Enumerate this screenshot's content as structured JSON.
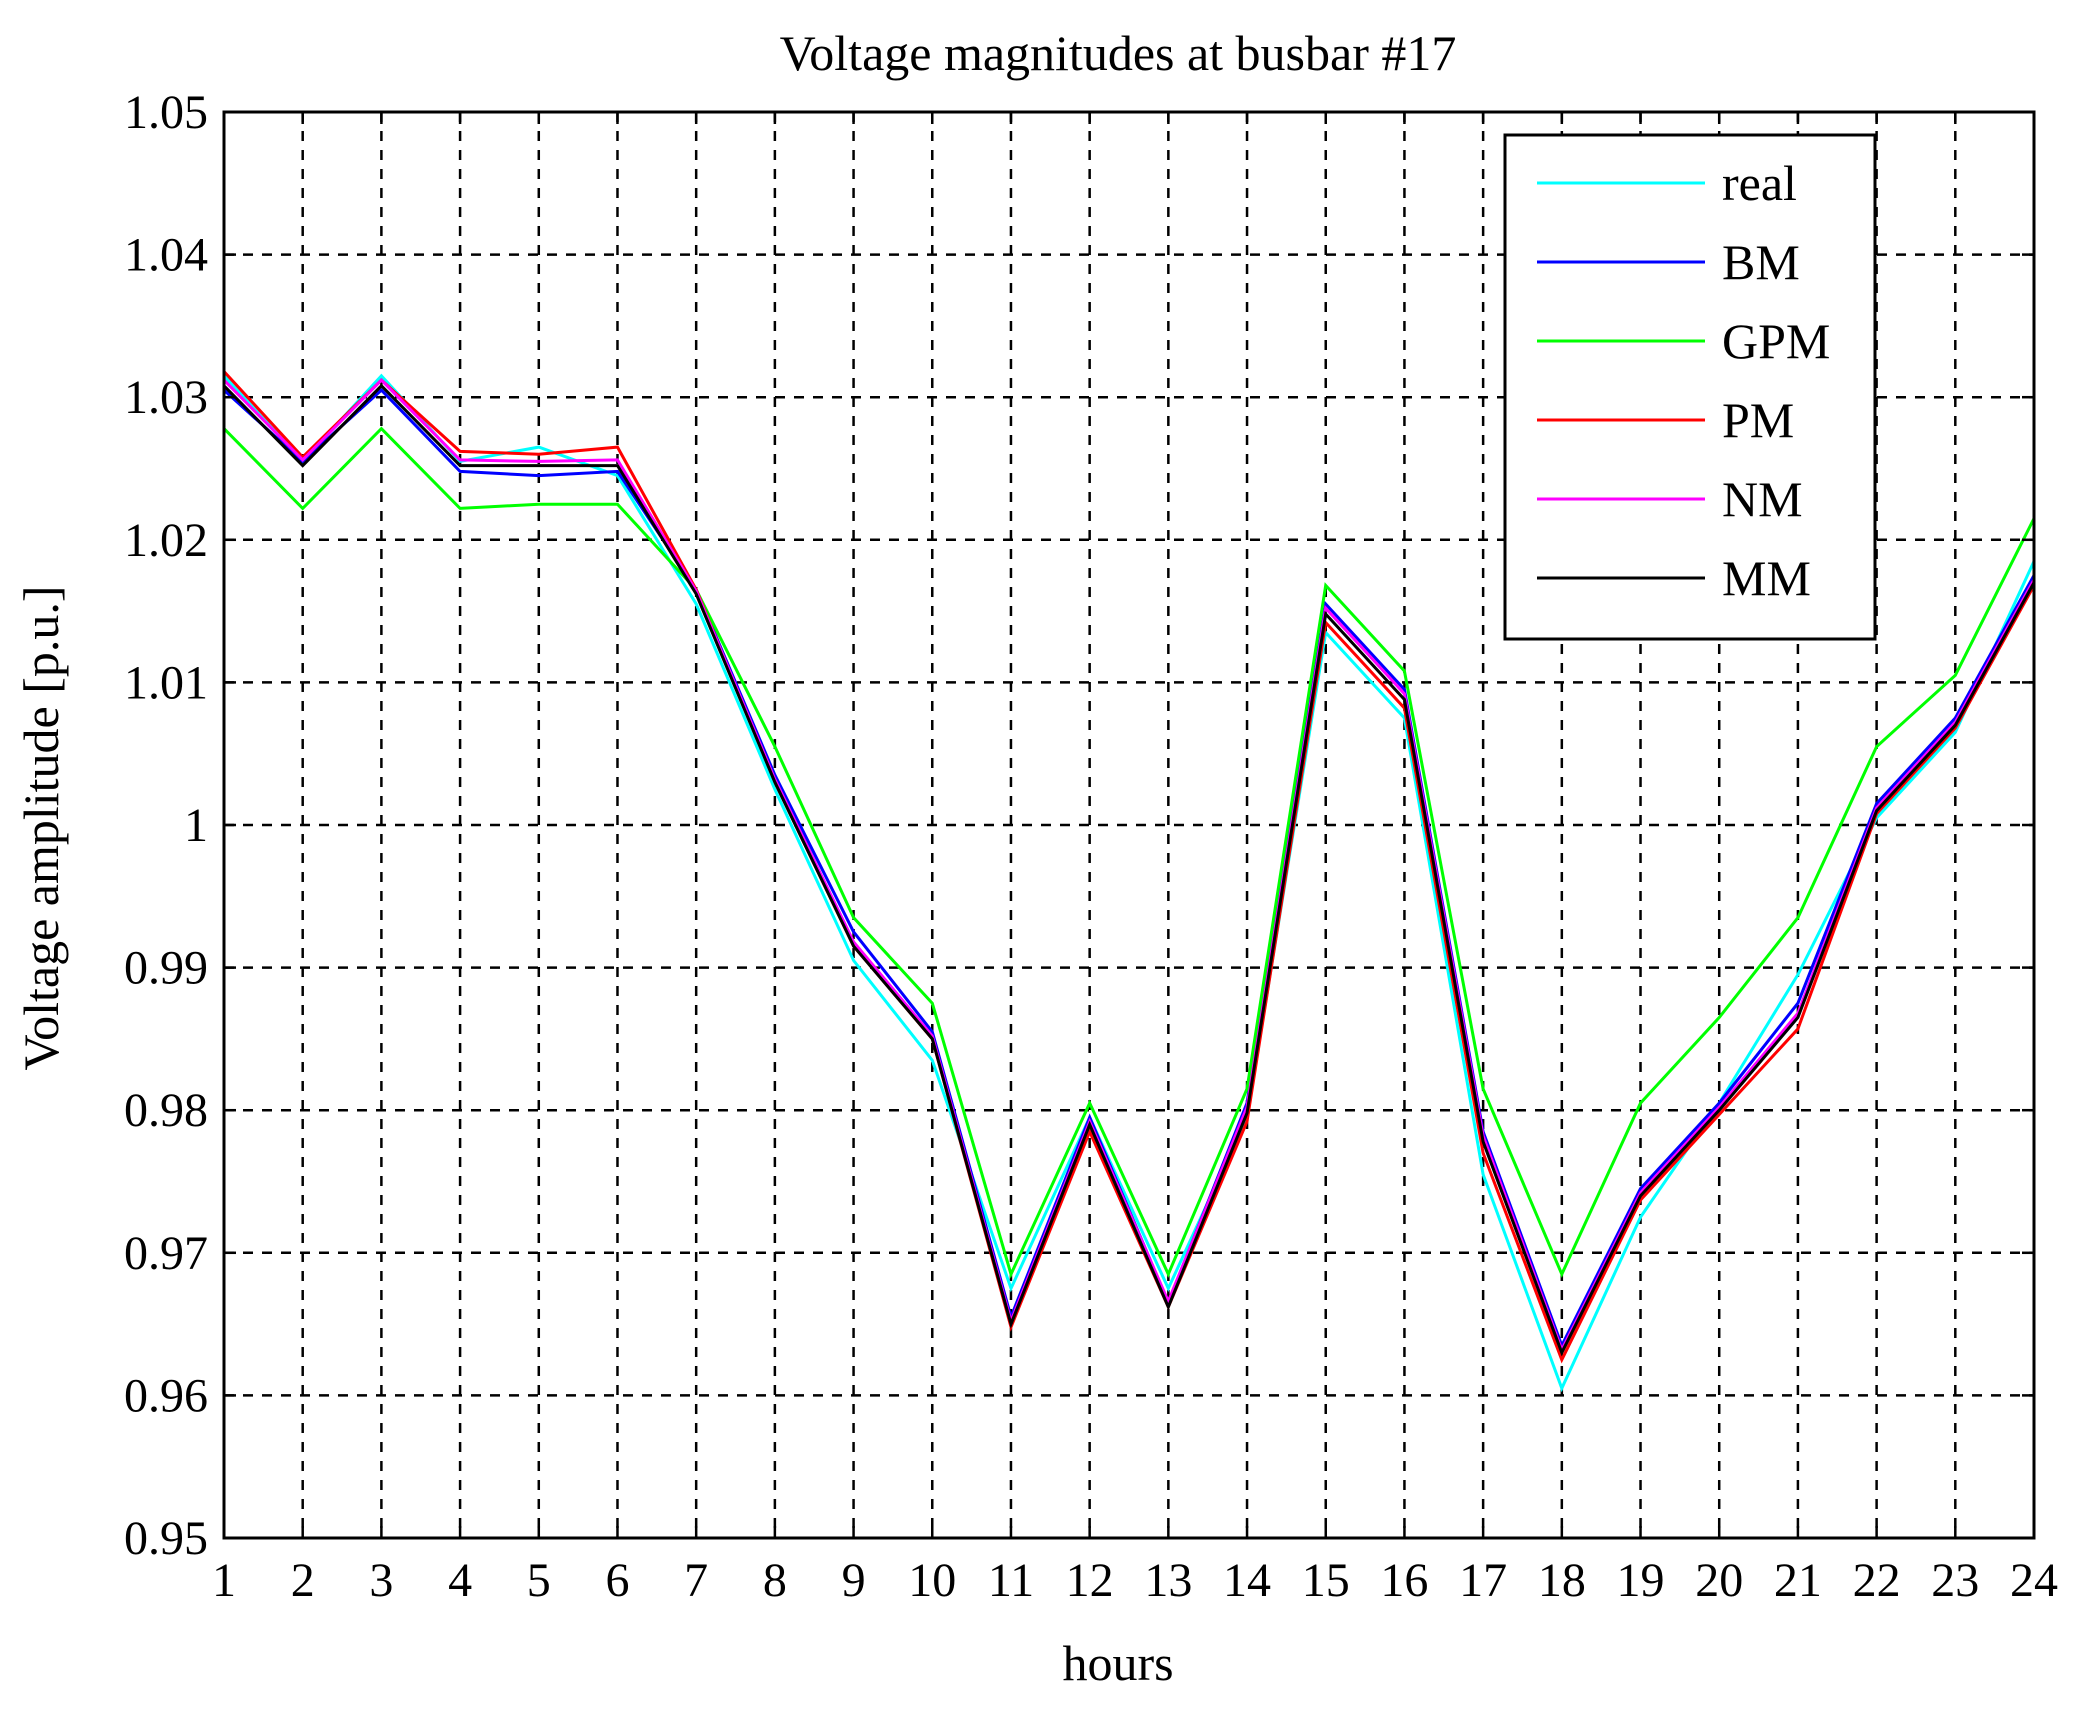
{
  "chart_data": {
    "type": "line",
    "title": "Voltage magnitudes at busbar #17",
    "xlabel": "hours",
    "ylabel": "Voltage amplitude [p.u.]",
    "xlim": [
      1,
      24
    ],
    "ylim": [
      0.95,
      1.05
    ],
    "grid": true,
    "legend_position": "top-right",
    "x": [
      1,
      2,
      3,
      4,
      5,
      6,
      7,
      8,
      9,
      10,
      11,
      12,
      13,
      14,
      15,
      16,
      17,
      18,
      19,
      20,
      21,
      22,
      23,
      24
    ],
    "xticks": [
      "1",
      "2",
      "3",
      "4",
      "5",
      "6",
      "7",
      "8",
      "9",
      "10",
      "11",
      "12",
      "13",
      "14",
      "15",
      "16",
      "17",
      "18",
      "19",
      "20",
      "21",
      "22",
      "23",
      "24"
    ],
    "yticks": [
      "0.95",
      "0.96",
      "0.97",
      "0.98",
      "0.99",
      "1",
      "1.01",
      "1.02",
      "1.03",
      "1.04",
      "1.05"
    ],
    "series": [
      {
        "name": "real",
        "color": "#00ffff",
        "values": [
          1.0315,
          1.0255,
          1.0315,
          1.0255,
          1.0265,
          1.0245,
          1.0155,
          1.0025,
          0.9905,
          0.9835,
          0.9675,
          0.9795,
          0.9675,
          0.9795,
          1.0135,
          1.0075,
          0.9755,
          0.9605,
          0.9725,
          0.9805,
          0.9895,
          1.0005,
          1.0065,
          1.0185
        ]
      },
      {
        "name": "BM",
        "color": "#0000ff",
        "values": [
          1.0305,
          1.0255,
          1.0305,
          1.0248,
          1.0245,
          1.0248,
          1.0165,
          1.0035,
          0.9925,
          0.9855,
          0.9655,
          0.9795,
          0.9665,
          0.9805,
          1.0155,
          1.0095,
          0.9785,
          0.9635,
          0.9745,
          0.9805,
          0.9875,
          1.0015,
          1.0075,
          1.0175
        ]
      },
      {
        "name": "GPM",
        "color": "#00ff00",
        "values": [
          1.0278,
          1.0222,
          1.0278,
          1.0222,
          1.0225,
          1.0225,
          1.0165,
          1.0055,
          0.9935,
          0.9875,
          0.9685,
          0.9805,
          0.9685,
          0.9815,
          1.0168,
          1.0108,
          0.9815,
          0.9685,
          0.9805,
          0.9865,
          0.9935,
          1.0055,
          1.0105,
          1.0215
        ]
      },
      {
        "name": "PM",
        "color": "#ff0000",
        "values": [
          1.0318,
          1.0258,
          1.0312,
          1.0262,
          1.026,
          1.0265,
          1.0165,
          1.003,
          0.9915,
          0.985,
          0.9648,
          0.9785,
          0.9662,
          0.9792,
          1.0142,
          1.0082,
          0.977,
          0.9625,
          0.9737,
          0.9797,
          0.9857,
          1.0008,
          1.0068,
          1.0168
        ]
      },
      {
        "name": "NM",
        "color": "#ff00ff",
        "values": [
          1.0312,
          1.0256,
          1.0312,
          1.0256,
          1.0255,
          1.0256,
          1.0164,
          1.0032,
          0.9918,
          0.9852,
          0.9652,
          0.9792,
          0.9666,
          0.9802,
          1.0152,
          1.0092,
          0.9782,
          0.9632,
          0.9742,
          0.9802,
          0.9868,
          1.0012,
          1.0072,
          1.0172
        ]
      },
      {
        "name": "MM",
        "color": "#000000",
        "values": [
          1.0308,
          1.0252,
          1.0308,
          1.0252,
          1.0252,
          1.0252,
          1.0162,
          1.003,
          0.9915,
          0.985,
          0.965,
          0.979,
          0.9662,
          0.9798,
          1.0148,
          1.0088,
          0.9778,
          0.963,
          0.974,
          0.98,
          0.9865,
          1.001,
          1.007,
          1.017
        ]
      }
    ]
  }
}
